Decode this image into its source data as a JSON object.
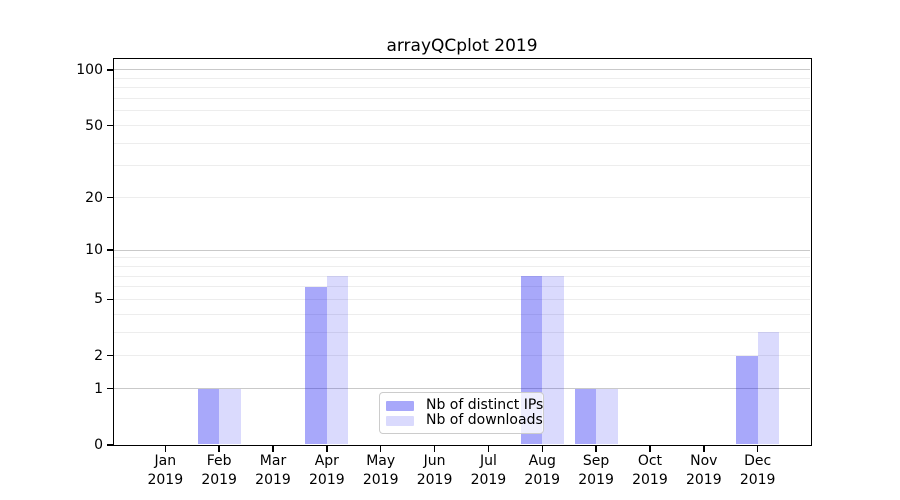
{
  "title": "arrayQCplot 2019",
  "chart_data": {
    "type": "bar",
    "title": "arrayQCplot 2019",
    "xlabel": "",
    "ylabel": "",
    "year": "2019",
    "months": [
      "Jan",
      "Feb",
      "Mar",
      "Apr",
      "May",
      "Jun",
      "Jul",
      "Aug",
      "Sep",
      "Oct",
      "Nov",
      "Dec"
    ],
    "categories": [
      "Jan 2019",
      "Feb 2019",
      "Mar 2019",
      "Apr 2019",
      "May 2019",
      "Jun 2019",
      "Jul 2019",
      "Aug 2019",
      "Sep 2019",
      "Oct 2019",
      "Nov 2019",
      "Dec 2019"
    ],
    "series": [
      {
        "name": "Nb of distinct IPs",
        "color": "rgba(5,5,240,0.35)",
        "hex_on_white": "#a8a8fa",
        "values": [
          0,
          1,
          0,
          6,
          0,
          0,
          0,
          7,
          1,
          0,
          0,
          2
        ]
      },
      {
        "name": "Nb of downloads",
        "color": "rgba(5,5,240,0.15)",
        "hex_on_white": "#d9d9fc",
        "values": [
          0,
          1,
          0,
          7,
          0,
          0,
          0,
          7,
          1,
          0,
          0,
          3
        ]
      }
    ],
    "yscale": "log1p",
    "ylim": [
      0,
      114
    ],
    "yticks": [
      0,
      1,
      2,
      5,
      10,
      20,
      50,
      100
    ],
    "grid_major": [
      1,
      10,
      100
    ],
    "grid_minor": [
      2,
      3,
      4,
      5,
      6,
      7,
      8,
      9,
      20,
      30,
      40,
      50,
      60,
      70,
      80,
      90
    ],
    "grid": "horizontal",
    "legend_position": "lower-center-inside"
  }
}
